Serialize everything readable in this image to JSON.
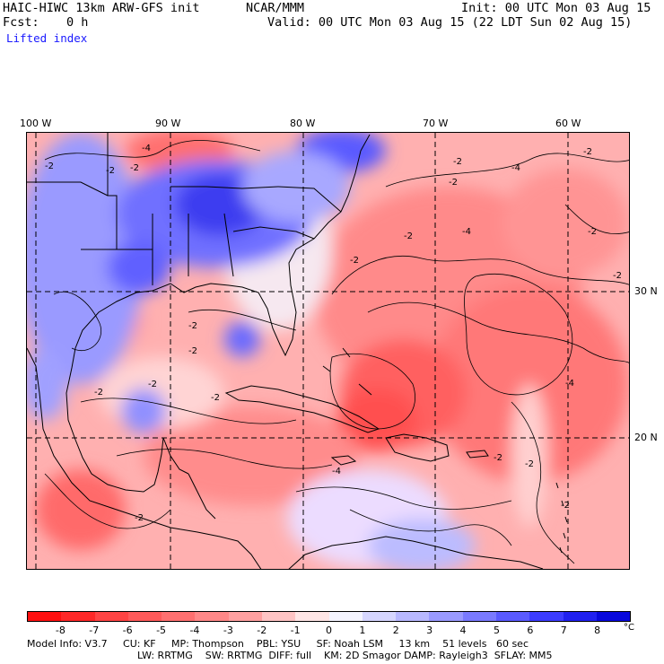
{
  "header": {
    "model": "HAIC-HIWC 13km ARW-GFS init",
    "org": "NCAR/MMM",
    "init": "Init: 00 UTC Mon 03 Aug 15",
    "fcst_label": "Fcst:",
    "fcst_value": "0 h",
    "valid": "Valid: 00 UTC Mon 03 Aug 15 (22 LDT Sun 02 Aug 15)",
    "field": "Lifted index"
  },
  "map": {
    "lon_labels": [
      "100 W",
      "90 W",
      "80 W",
      "70 W",
      "60 W"
    ],
    "lat_labels": [
      "30 N",
      "20 N"
    ],
    "contour_label": "-2",
    "contour_label_4": "-4"
  },
  "colorbar": {
    "levels": [
      "-8",
      "-7",
      "-6",
      "-5",
      "-4",
      "-3",
      "-2",
      "-1",
      "0",
      "1",
      "2",
      "3",
      "4",
      "5",
      "6",
      "7",
      "8"
    ],
    "unit": "°C",
    "colors": [
      "#ff1010",
      "#ff2828",
      "#ff4444",
      "#ff5a5a",
      "#ff7070",
      "#ff8888",
      "#ffa0a0",
      "#ffc4c4",
      "#ffe6e6",
      "#f4f4ff",
      "#d6d6ff",
      "#b8b8ff",
      "#9a9aff",
      "#7a7aff",
      "#5a5aff",
      "#3c3cff",
      "#2020f0",
      "#0808dc"
    ]
  },
  "footer": {
    "line1": "Model Info: V3.7     CU: KF     MP: Thompson    PBL: YSU     SF: Noah LSM     13 km    51 levels   60 sec",
    "line2": "LW: RRTMG    SW: RRTMG  DIFF: full    KM: 2D Smagor DAMP: Rayleigh3  SFLAY: MM5"
  }
}
